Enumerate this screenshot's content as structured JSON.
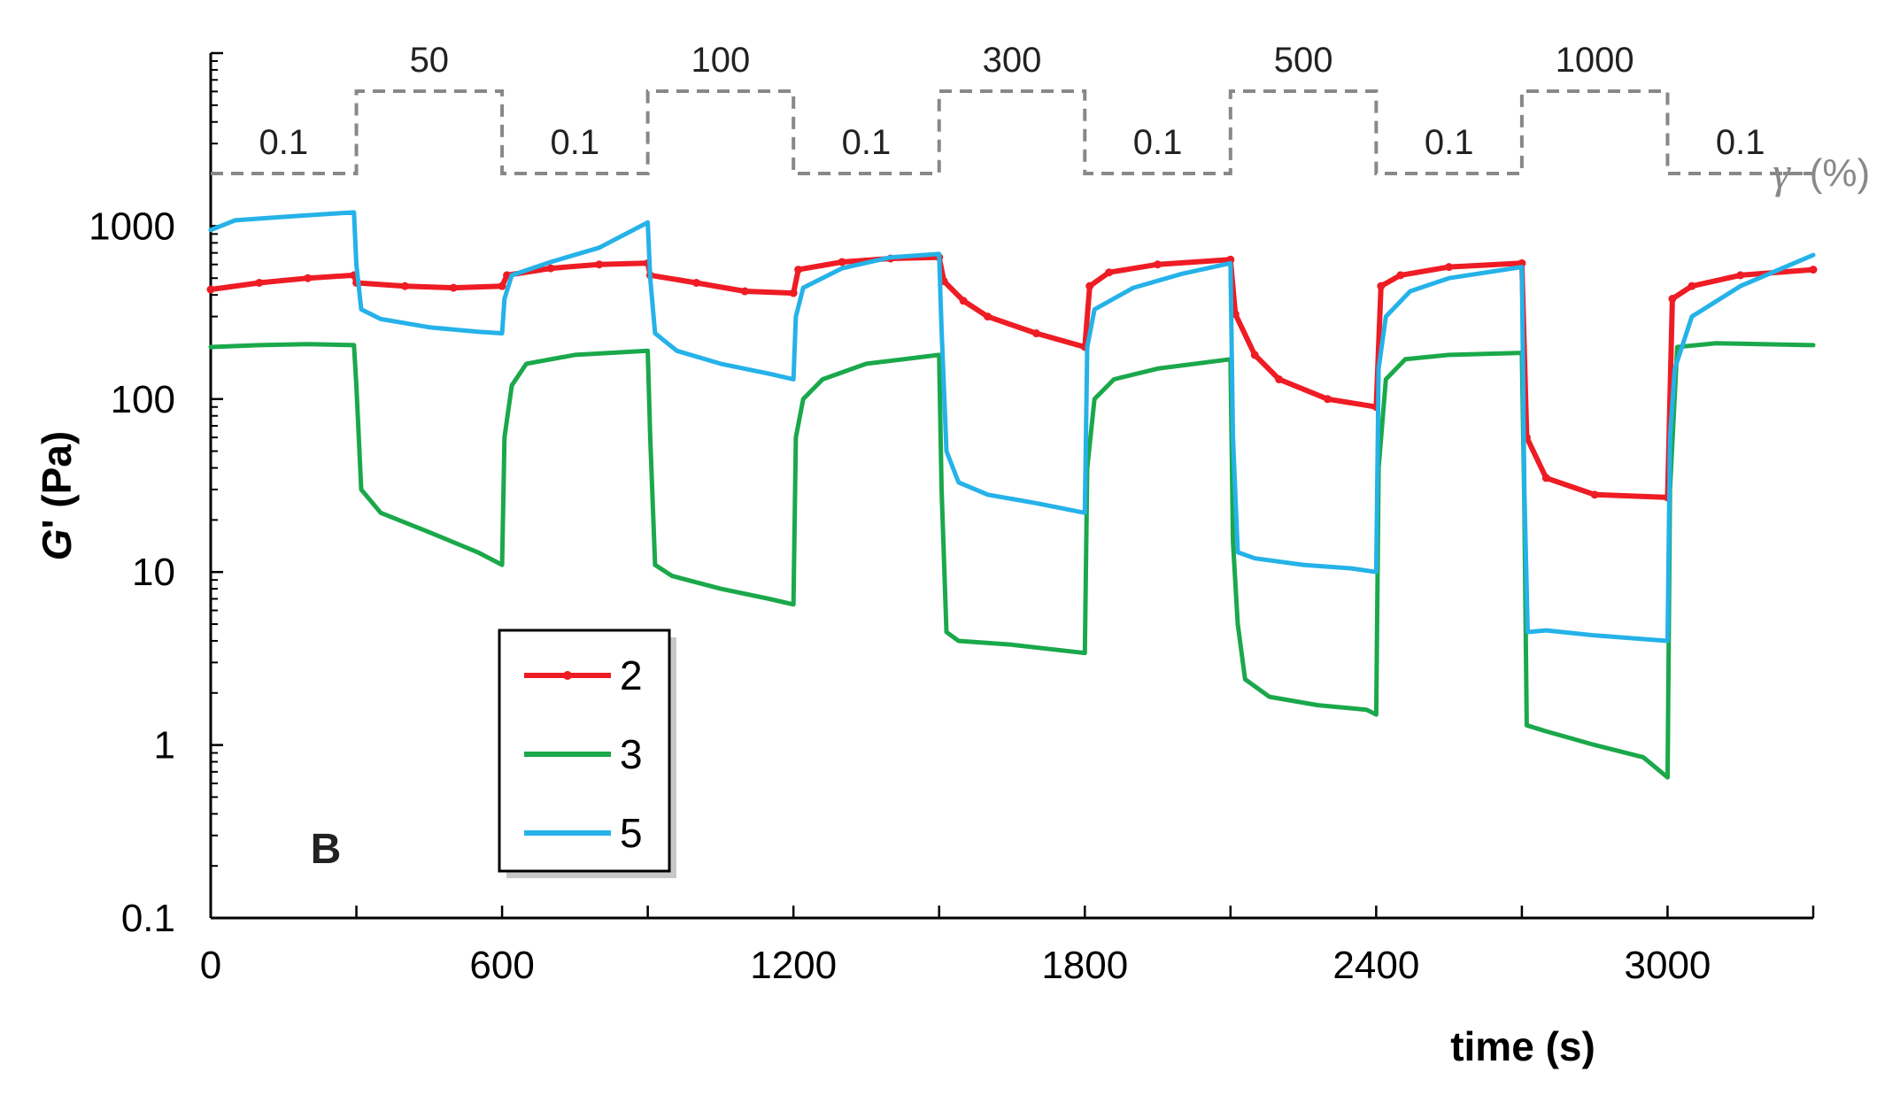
{
  "chart_data": {
    "type": "line",
    "panel_label": "B",
    "xlabel": "time (s)",
    "ylabel_italic": "G",
    "ylabel_rest": "' (Pa)",
    "xlim": [
      0,
      3300
    ],
    "ylim": [
      0.1,
      10000
    ],
    "yscale": "log",
    "x_ticks": [
      0,
      600,
      1200,
      1800,
      2400,
      3000
    ],
    "x_tick_labels": [
      "0",
      "600",
      "1200",
      "1800",
      "2400",
      "3000"
    ],
    "y_ticks": [
      0.1,
      1,
      10,
      100,
      1000
    ],
    "y_tick_labels": [
      "0.1",
      "1",
      "10",
      "100",
      "1000"
    ],
    "strain_profile": {
      "symbol": "γ",
      "unit_label": "(%)",
      "color": "#888888",
      "segments": [
        {
          "t0": 0,
          "t1": 300,
          "label": "0.1",
          "level": "low"
        },
        {
          "t0": 300,
          "t1": 600,
          "label": "50",
          "level": "high"
        },
        {
          "t0": 600,
          "t1": 900,
          "label": "0.1",
          "level": "low"
        },
        {
          "t0": 900,
          "t1": 1200,
          "label": "100",
          "level": "high"
        },
        {
          "t0": 1200,
          "t1": 1500,
          "label": "0.1",
          "level": "low"
        },
        {
          "t0": 1500,
          "t1": 1800,
          "label": "300",
          "level": "high"
        },
        {
          "t0": 1800,
          "t1": 2100,
          "label": "0.1",
          "level": "low"
        },
        {
          "t0": 2100,
          "t1": 2400,
          "label": "500",
          "level": "high"
        },
        {
          "t0": 2400,
          "t1": 2700,
          "label": "0.1",
          "level": "low"
        },
        {
          "t0": 2700,
          "t1": 3000,
          "label": "1000",
          "level": "high"
        },
        {
          "t0": 3000,
          "t1": 3300,
          "label": "0.1",
          "level": "low"
        }
      ]
    },
    "legend": {
      "position": "bottom-left"
    },
    "series": [
      {
        "name": "2",
        "color": "#ee1c24",
        "markers": true,
        "points": [
          [
            0,
            430
          ],
          [
            100,
            470
          ],
          [
            200,
            500
          ],
          [
            295,
            520
          ],
          [
            300,
            470
          ],
          [
            400,
            450
          ],
          [
            500,
            440
          ],
          [
            600,
            450
          ],
          [
            610,
            520
          ],
          [
            700,
            570
          ],
          [
            800,
            600
          ],
          [
            900,
            610
          ],
          [
            905,
            520
          ],
          [
            1000,
            470
          ],
          [
            1100,
            420
          ],
          [
            1200,
            410
          ],
          [
            1210,
            560
          ],
          [
            1300,
            620
          ],
          [
            1400,
            650
          ],
          [
            1500,
            660
          ],
          [
            1510,
            480
          ],
          [
            1550,
            370
          ],
          [
            1600,
            300
          ],
          [
            1700,
            240
          ],
          [
            1800,
            200
          ],
          [
            1810,
            450
          ],
          [
            1850,
            540
          ],
          [
            1950,
            600
          ],
          [
            2100,
            640
          ],
          [
            2110,
            310
          ],
          [
            2150,
            180
          ],
          [
            2200,
            130
          ],
          [
            2300,
            100
          ],
          [
            2400,
            90
          ],
          [
            2410,
            450
          ],
          [
            2450,
            520
          ],
          [
            2550,
            580
          ],
          [
            2700,
            610
          ],
          [
            2710,
            60
          ],
          [
            2750,
            35
          ],
          [
            2850,
            28
          ],
          [
            3000,
            27
          ],
          [
            3010,
            380
          ],
          [
            3050,
            450
          ],
          [
            3150,
            520
          ],
          [
            3300,
            560
          ]
        ]
      },
      {
        "name": "3",
        "color": "#1aa84b",
        "markers": false,
        "points": [
          [
            0,
            200
          ],
          [
            100,
            205
          ],
          [
            200,
            208
          ],
          [
            295,
            205
          ],
          [
            300,
            120
          ],
          [
            310,
            30
          ],
          [
            350,
            22
          ],
          [
            450,
            17
          ],
          [
            550,
            13
          ],
          [
            600,
            11
          ],
          [
            605,
            60
          ],
          [
            620,
            120
          ],
          [
            650,
            160
          ],
          [
            750,
            180
          ],
          [
            900,
            190
          ],
          [
            905,
            60
          ],
          [
            915,
            11
          ],
          [
            950,
            9.5
          ],
          [
            1050,
            8
          ],
          [
            1150,
            7
          ],
          [
            1200,
            6.5
          ],
          [
            1205,
            60
          ],
          [
            1220,
            100
          ],
          [
            1260,
            130
          ],
          [
            1350,
            160
          ],
          [
            1500,
            180
          ],
          [
            1505,
            30
          ],
          [
            1515,
            4.5
          ],
          [
            1540,
            4
          ],
          [
            1650,
            3.8
          ],
          [
            1800,
            3.4
          ],
          [
            1805,
            40
          ],
          [
            1820,
            100
          ],
          [
            1860,
            130
          ],
          [
            1950,
            150
          ],
          [
            2100,
            170
          ],
          [
            2105,
            15
          ],
          [
            2115,
            5
          ],
          [
            2130,
            2.4
          ],
          [
            2180,
            1.9
          ],
          [
            2280,
            1.7
          ],
          [
            2380,
            1.6
          ],
          [
            2400,
            1.5
          ],
          [
            2405,
            40
          ],
          [
            2420,
            130
          ],
          [
            2460,
            170
          ],
          [
            2550,
            180
          ],
          [
            2700,
            185
          ],
          [
            2705,
            25
          ],
          [
            2710,
            1.3
          ],
          [
            2750,
            1.2
          ],
          [
            2850,
            1.0
          ],
          [
            2950,
            0.85
          ],
          [
            3000,
            0.65
          ],
          [
            3005,
            30
          ],
          [
            3020,
            200
          ],
          [
            3100,
            210
          ],
          [
            3300,
            205
          ]
        ]
      },
      {
        "name": "5",
        "color": "#25b2e8",
        "markers": false,
        "points": [
          [
            0,
            950
          ],
          [
            50,
            1080
          ],
          [
            150,
            1130
          ],
          [
            250,
            1180
          ],
          [
            295,
            1200
          ],
          [
            300,
            600
          ],
          [
            310,
            330
          ],
          [
            350,
            290
          ],
          [
            450,
            260
          ],
          [
            550,
            245
          ],
          [
            600,
            240
          ],
          [
            605,
            380
          ],
          [
            620,
            520
          ],
          [
            700,
            620
          ],
          [
            800,
            750
          ],
          [
            900,
            1050
          ],
          [
            905,
            500
          ],
          [
            915,
            240
          ],
          [
            960,
            190
          ],
          [
            1050,
            160
          ],
          [
            1150,
            140
          ],
          [
            1200,
            130
          ],
          [
            1205,
            300
          ],
          [
            1220,
            440
          ],
          [
            1300,
            570
          ],
          [
            1400,
            660
          ],
          [
            1500,
            690
          ],
          [
            1505,
            250
          ],
          [
            1515,
            50
          ],
          [
            1540,
            33
          ],
          [
            1600,
            28
          ],
          [
            1700,
            25
          ],
          [
            1800,
            22
          ],
          [
            1805,
            200
          ],
          [
            1820,
            330
          ],
          [
            1900,
            440
          ],
          [
            2000,
            530
          ],
          [
            2100,
            610
          ],
          [
            2105,
            60
          ],
          [
            2115,
            13
          ],
          [
            2150,
            12
          ],
          [
            2250,
            11
          ],
          [
            2350,
            10.5
          ],
          [
            2400,
            10
          ],
          [
            2405,
            150
          ],
          [
            2420,
            300
          ],
          [
            2470,
            420
          ],
          [
            2550,
            500
          ],
          [
            2700,
            580
          ],
          [
            2705,
            30
          ],
          [
            2712,
            4.5
          ],
          [
            2750,
            4.6
          ],
          [
            2850,
            4.3
          ],
          [
            3000,
            4
          ],
          [
            3005,
            60
          ],
          [
            3015,
            150
          ],
          [
            3050,
            300
          ],
          [
            3150,
            450
          ],
          [
            3300,
            680
          ]
        ]
      }
    ]
  }
}
